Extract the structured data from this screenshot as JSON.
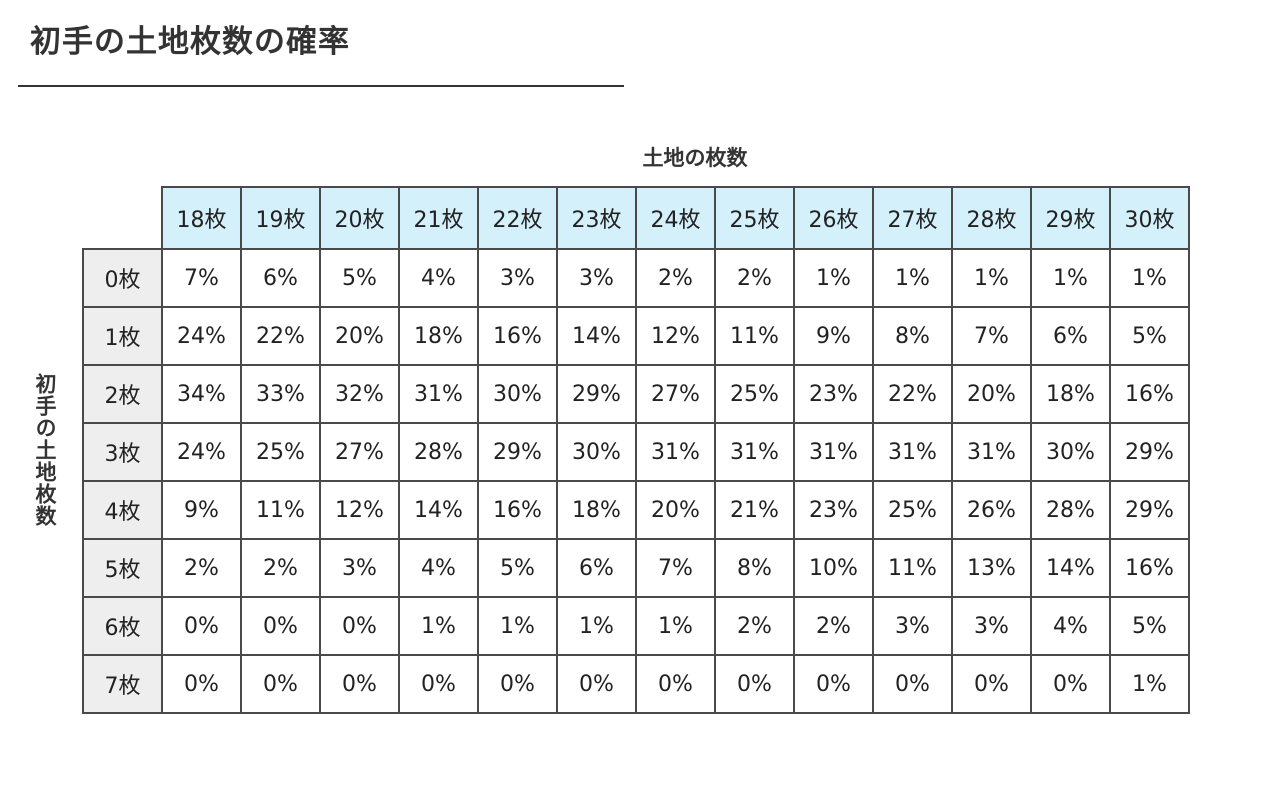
{
  "title": "初手の土地枚数の確率",
  "colors": {
    "header_fill": "#d4f1fb",
    "row_header_fill": "#eeeeee",
    "border": "#4a4a4a"
  },
  "chart_data": {
    "type": "table",
    "xlabel": "土地の枚数",
    "ylabel": "初手の土地枚数",
    "columns": [
      "18枚",
      "19枚",
      "20枚",
      "21枚",
      "22枚",
      "23枚",
      "24枚",
      "25枚",
      "26枚",
      "27枚",
      "28枚",
      "29枚",
      "30枚"
    ],
    "rows": [
      {
        "label": "0枚",
        "values": [
          "7%",
          "6%",
          "5%",
          "4%",
          "3%",
          "3%",
          "2%",
          "2%",
          "1%",
          "1%",
          "1%",
          "1%",
          "1%"
        ]
      },
      {
        "label": "1枚",
        "values": [
          "24%",
          "22%",
          "20%",
          "18%",
          "16%",
          "14%",
          "12%",
          "11%",
          "9%",
          "8%",
          "7%",
          "6%",
          "5%"
        ]
      },
      {
        "label": "2枚",
        "values": [
          "34%",
          "33%",
          "32%",
          "31%",
          "30%",
          "29%",
          "27%",
          "25%",
          "23%",
          "22%",
          "20%",
          "18%",
          "16%"
        ]
      },
      {
        "label": "3枚",
        "values": [
          "24%",
          "25%",
          "27%",
          "28%",
          "29%",
          "30%",
          "31%",
          "31%",
          "31%",
          "31%",
          "31%",
          "30%",
          "29%"
        ]
      },
      {
        "label": "4枚",
        "values": [
          "9%",
          "11%",
          "12%",
          "14%",
          "16%",
          "18%",
          "20%",
          "21%",
          "23%",
          "25%",
          "26%",
          "28%",
          "29%"
        ]
      },
      {
        "label": "5枚",
        "values": [
          "2%",
          "2%",
          "3%",
          "4%",
          "5%",
          "6%",
          "7%",
          "8%",
          "10%",
          "11%",
          "13%",
          "14%",
          "16%"
        ]
      },
      {
        "label": "6枚",
        "values": [
          "0%",
          "0%",
          "0%",
          "1%",
          "1%",
          "1%",
          "1%",
          "2%",
          "2%",
          "3%",
          "3%",
          "4%",
          "5%"
        ]
      },
      {
        "label": "7枚",
        "values": [
          "0%",
          "0%",
          "0%",
          "0%",
          "0%",
          "0%",
          "0%",
          "0%",
          "0%",
          "0%",
          "0%",
          "0%",
          "1%"
        ]
      }
    ]
  }
}
